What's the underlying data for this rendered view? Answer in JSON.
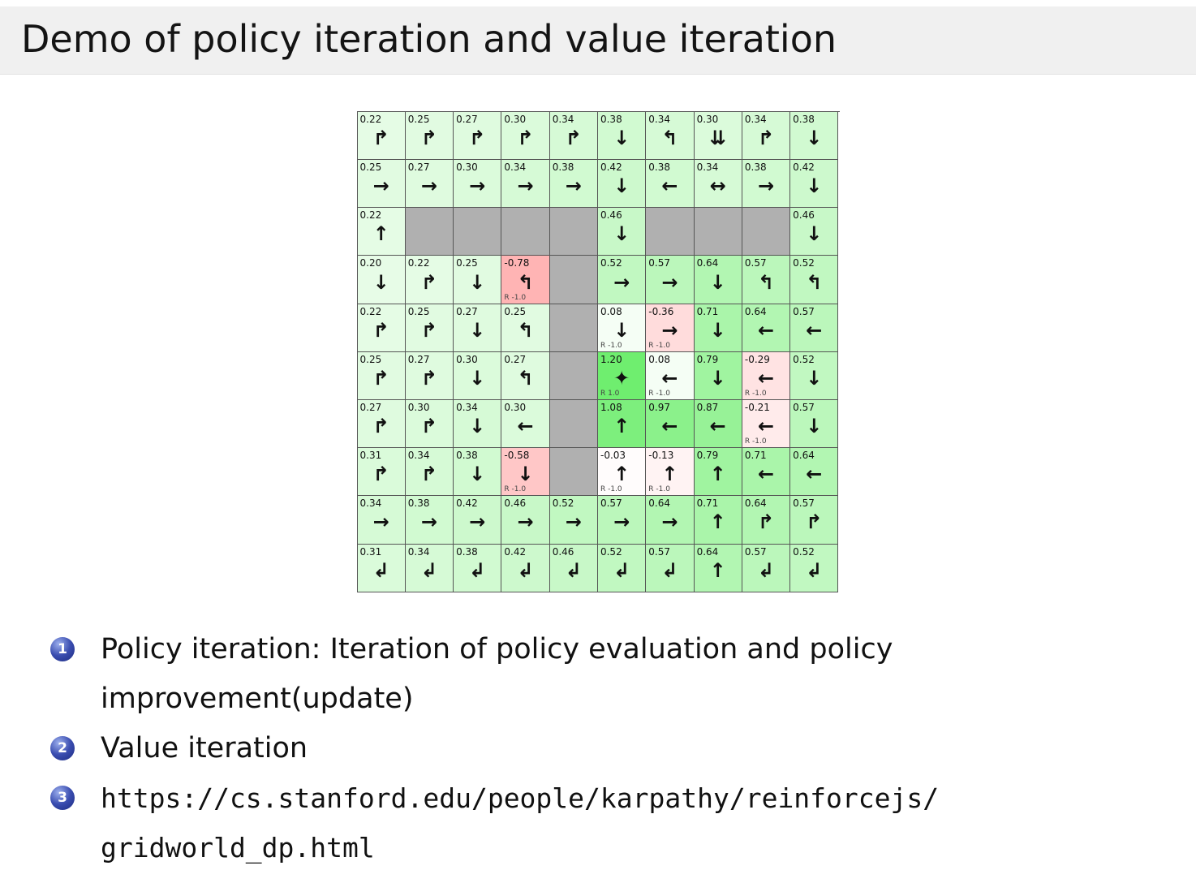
{
  "slide": {
    "title": "Demo of policy iteration and value iteration",
    "items": [
      {
        "num": "1",
        "text": "Policy iteration: Iteration of policy evaluation and policy improvement(update)"
      },
      {
        "num": "2",
        "text": "Value iteration"
      },
      {
        "num": "3",
        "text": "https://cs.stanford.edu/people/karpathy/reinforcejs/gridworld_dp.html"
      }
    ]
  },
  "colors": {
    "header_bg": "#f0f0f0",
    "wall": "#b0b0b0",
    "grid_border": "#555555",
    "badge_blue": "#2c3e9e",
    "goal_green": "#6fe86f",
    "penalty_pink": "#f5b4b4",
    "text": "#111111"
  },
  "grid": {
    "rows": 10,
    "cols": 10,
    "legend": "cells: v = state value, a = policy arrow glyph, r = reward label, w = wall",
    "rows_data": [
      [
        {
          "v": "0.22",
          "a": "↱"
        },
        {
          "v": "0.25",
          "a": "↱"
        },
        {
          "v": "0.27",
          "a": "↱"
        },
        {
          "v": "0.30",
          "a": "↱"
        },
        {
          "v": "0.34",
          "a": "↱"
        },
        {
          "v": "0.38",
          "a": "↓"
        },
        {
          "v": "0.34",
          "a": "↰"
        },
        {
          "v": "0.30",
          "a": "⇊"
        },
        {
          "v": "0.34",
          "a": "↱"
        },
        {
          "v": "0.38",
          "a": "↓"
        }
      ],
      [
        {
          "v": "0.25",
          "a": "→"
        },
        {
          "v": "0.27",
          "a": "→"
        },
        {
          "v": "0.30",
          "a": "→"
        },
        {
          "v": "0.34",
          "a": "→"
        },
        {
          "v": "0.38",
          "a": "→"
        },
        {
          "v": "0.42",
          "a": "↓"
        },
        {
          "v": "0.38",
          "a": "←"
        },
        {
          "v": "0.34",
          "a": "↔"
        },
        {
          "v": "0.38",
          "a": "→"
        },
        {
          "v": "0.42",
          "a": "↓"
        }
      ],
      [
        {
          "v": "0.22",
          "a": "↑"
        },
        {
          "w": 1
        },
        {
          "w": 1
        },
        {
          "w": 1
        },
        {
          "w": 1
        },
        {
          "v": "0.46",
          "a": "↓"
        },
        {
          "w": 1
        },
        {
          "w": 1
        },
        {
          "w": 1
        },
        {
          "v": "0.46",
          "a": "↓"
        }
      ],
      [
        {
          "v": "0.20",
          "a": "↓"
        },
        {
          "v": "0.22",
          "a": "↱"
        },
        {
          "v": "0.25",
          "a": "↓"
        },
        {
          "v": "-0.78",
          "a": "↰",
          "r": "R -1.0"
        },
        {
          "w": 1
        },
        {
          "v": "0.52",
          "a": "→"
        },
        {
          "v": "0.57",
          "a": "→"
        },
        {
          "v": "0.64",
          "a": "↓"
        },
        {
          "v": "0.57",
          "a": "↰"
        },
        {
          "v": "0.52",
          "a": "↰"
        }
      ],
      [
        {
          "v": "0.22",
          "a": "↱"
        },
        {
          "v": "0.25",
          "a": "↱"
        },
        {
          "v": "0.27",
          "a": "↓"
        },
        {
          "v": "0.25",
          "a": "↰"
        },
        {
          "w": 1
        },
        {
          "v": "0.08",
          "a": "↓",
          "r": "R -1.0"
        },
        {
          "v": "-0.36",
          "a": "→",
          "r": "R -1.0"
        },
        {
          "v": "0.71",
          "a": "↓"
        },
        {
          "v": "0.64",
          "a": "←"
        },
        {
          "v": "0.57",
          "a": "←"
        }
      ],
      [
        {
          "v": "0.25",
          "a": "↱"
        },
        {
          "v": "0.27",
          "a": "↱"
        },
        {
          "v": "0.30",
          "a": "↓"
        },
        {
          "v": "0.27",
          "a": "↰"
        },
        {
          "w": 1
        },
        {
          "v": "1.20",
          "a": "✦",
          "r": "R 1.0"
        },
        {
          "v": "0.08",
          "a": "←",
          "r": "R -1.0"
        },
        {
          "v": "0.79",
          "a": "↓"
        },
        {
          "v": "-0.29",
          "a": "←",
          "r": "R -1.0"
        },
        {
          "v": "0.52",
          "a": "↓"
        }
      ],
      [
        {
          "v": "0.27",
          "a": "↱"
        },
        {
          "v": "0.30",
          "a": "↱"
        },
        {
          "v": "0.34",
          "a": "↓"
        },
        {
          "v": "0.30",
          "a": "←"
        },
        {
          "w": 1
        },
        {
          "v": "1.08",
          "a": "↑"
        },
        {
          "v": "0.97",
          "a": "←"
        },
        {
          "v": "0.87",
          "a": "←"
        },
        {
          "v": "-0.21",
          "a": "←",
          "r": "R -1.0"
        },
        {
          "v": "0.57",
          "a": "↓"
        }
      ],
      [
        {
          "v": "0.31",
          "a": "↱"
        },
        {
          "v": "0.34",
          "a": "↱"
        },
        {
          "v": "0.38",
          "a": "↓"
        },
        {
          "v": "-0.58",
          "a": "↓",
          "r": "R -1.0"
        },
        {
          "w": 1
        },
        {
          "v": "-0.03",
          "a": "↑",
          "r": "R -1.0"
        },
        {
          "v": "-0.13",
          "a": "↑",
          "r": "R -1.0"
        },
        {
          "v": "0.79",
          "a": "↑"
        },
        {
          "v": "0.71",
          "a": "←"
        },
        {
          "v": "0.64",
          "a": "←"
        }
      ],
      [
        {
          "v": "0.34",
          "a": "→"
        },
        {
          "v": "0.38",
          "a": "→"
        },
        {
          "v": "0.42",
          "a": "→"
        },
        {
          "v": "0.46",
          "a": "→"
        },
        {
          "v": "0.52",
          "a": "→"
        },
        {
          "v": "0.57",
          "a": "→"
        },
        {
          "v": "0.64",
          "a": "→"
        },
        {
          "v": "0.71",
          "a": "↑"
        },
        {
          "v": "0.64",
          "a": "↱"
        },
        {
          "v": "0.57",
          "a": "↱"
        }
      ],
      [
        {
          "v": "0.31",
          "a": "↲"
        },
        {
          "v": "0.34",
          "a": "↲"
        },
        {
          "v": "0.38",
          "a": "↲"
        },
        {
          "v": "0.42",
          "a": "↲"
        },
        {
          "v": "0.46",
          "a": "↲"
        },
        {
          "v": "0.52",
          "a": "↲"
        },
        {
          "v": "0.57",
          "a": "↲"
        },
        {
          "v": "0.64",
          "a": "↑"
        },
        {
          "v": "0.57",
          "a": "↲"
        },
        {
          "v": "0.52",
          "a": "↲"
        }
      ]
    ]
  }
}
